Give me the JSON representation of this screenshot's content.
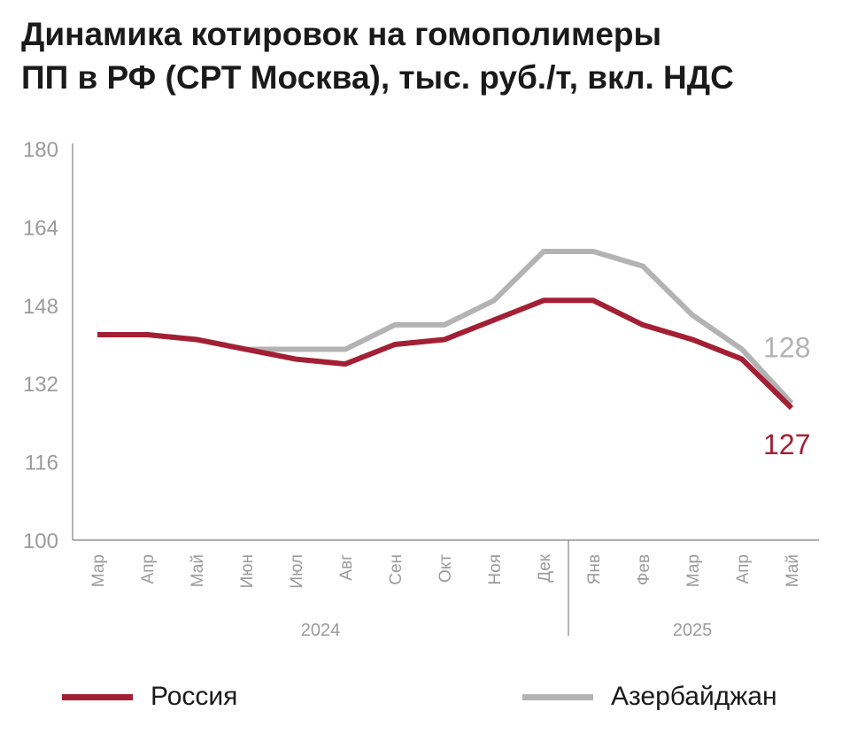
{
  "chart_data": {
    "type": "line",
    "title_lines": [
      "Динамика котировок на гомополимеры",
      "ПП в РФ (СРТ Москва), тыс. руб./т, вкл. НДС"
    ],
    "categories": [
      "Мар",
      "Апр",
      "Май",
      "Июн",
      "Июл",
      "Авг",
      "Сен",
      "Окт",
      "Ноя",
      "Дек",
      "Янв",
      "Фев",
      "Мар",
      "Апр",
      "Май"
    ],
    "year_groups": [
      {
        "label": "2024",
        "start": 0,
        "end": 9
      },
      {
        "label": "2025",
        "start": 10,
        "end": 14
      }
    ],
    "ylim": [
      100,
      180
    ],
    "yticks": [
      100,
      116,
      132,
      148,
      164,
      180
    ],
    "grid": false,
    "legend_position": "bottom",
    "series": [
      {
        "name": "Азербайджан",
        "color": "#b3b3b3",
        "values": [
          142,
          142,
          141,
          139,
          139,
          139,
          144,
          144,
          149,
          159,
          159,
          156,
          146,
          139,
          128
        ],
        "end_label": "128"
      },
      {
        "name": "Россия",
        "color": "#a31f34",
        "values": [
          142,
          142,
          141,
          139,
          137,
          136,
          140,
          141,
          145,
          149,
          149,
          144,
          141,
          137,
          127
        ],
        "end_label": "127"
      }
    ]
  },
  "legend": {
    "russia": {
      "label": "Россия",
      "color": "#a31f34"
    },
    "azerbaijan": {
      "label": "Азербайджан",
      "color": "#b3b3b3"
    }
  }
}
